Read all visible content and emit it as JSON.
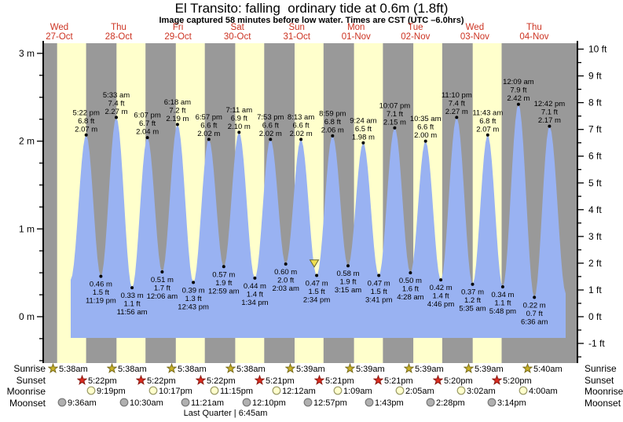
{
  "title": "El Transito: falling  ordinary tide at 0.6m (1.8ft)",
  "subtitle": "Image captured 58 minutes before low water. Times are CST (UTC –6.0hrs)",
  "footer_note": "Last Quarter | 6:45am",
  "colors": {
    "day_label_red": "#cc3322",
    "band_day_yellow": "#ffffcc",
    "band_night_gray": "#999999",
    "tide_fill_blue": "#99b2f2",
    "axis_black": "#000000",
    "marker_fill": "#f0e050",
    "marker_stroke": "#666633",
    "sunrise_star_fill": "#c9b227",
    "sunrise_star_stroke": "#7a6c1a",
    "sunset_star_fill": "#dd2c20",
    "sunset_star_stroke": "#8a1a12",
    "moonrise_circle_fill": "#ffffcc",
    "moonrise_circle_stroke": "#999966",
    "moonset_circle_fill": "#b0b0b0",
    "moonset_circle_stroke": "#777777"
  },
  "days": [
    {
      "weekday": "Wed",
      "date": "27-Oct"
    },
    {
      "weekday": "Thu",
      "date": "28-Oct"
    },
    {
      "weekday": "Fri",
      "date": "29-Oct"
    },
    {
      "weekday": "Sat",
      "date": "30-Oct"
    },
    {
      "weekday": "Sun",
      "date": "31-Oct"
    },
    {
      "weekday": "Mon",
      "date": "01-Nov"
    },
    {
      "weekday": "Tue",
      "date": "02-Nov"
    },
    {
      "weekday": "Wed",
      "date": "03-Nov"
    },
    {
      "weekday": "Thu",
      "date": "04-Nov"
    }
  ],
  "chart_data": {
    "type": "area",
    "title": "El Transito tide heights",
    "x_units": "days (27-Oct to 04-Nov)",
    "y_axis_left": {
      "unit": "m",
      "ticks": [
        {
          "v": 0,
          "label": "0 m"
        },
        {
          "v": 1,
          "label": "1 m"
        },
        {
          "v": 2,
          "label": "2 m"
        },
        {
          "v": 3,
          "label": "3 m"
        }
      ]
    },
    "y_axis_right": {
      "unit": "ft",
      "ticks": [
        {
          "v": -1,
          "label": "-1 ft"
        },
        {
          "v": 0,
          "label": "0 ft"
        },
        {
          "v": 1,
          "label": "1 ft"
        },
        {
          "v": 2,
          "label": "2 ft"
        },
        {
          "v": 3,
          "label": "3 ft"
        },
        {
          "v": 4,
          "label": "4 ft"
        },
        {
          "v": 5,
          "label": "5 ft"
        },
        {
          "v": 6,
          "label": "6 ft"
        },
        {
          "v": 7,
          "label": "7 ft"
        },
        {
          "v": 8,
          "label": "8 ft"
        },
        {
          "v": 9,
          "label": "9 ft"
        },
        {
          "v": 10,
          "label": "10 ft"
        }
      ]
    },
    "highs": [
      {
        "day": 0,
        "time": "5:22 pm",
        "ft": "6.8",
        "m": "2.07"
      },
      {
        "day": 1,
        "time": "5:33 am",
        "ft": "7.4",
        "m": "2.27"
      },
      {
        "day": 1,
        "time": "6:07 pm",
        "ft": "6.7",
        "m": "2.04"
      },
      {
        "day": 2,
        "time": "6:18 am",
        "ft": "7.2",
        "m": "2.19"
      },
      {
        "day": 2,
        "time": "6:57 pm",
        "ft": "6.6",
        "m": "2.02"
      },
      {
        "day": 3,
        "time": "7:11 am",
        "ft": "6.9",
        "m": "2.10"
      },
      {
        "day": 3,
        "time": "7:53 pm",
        "ft": "6.6",
        "m": "2.02"
      },
      {
        "day": 4,
        "time": "8:13 am",
        "ft": "6.6",
        "m": "2.02"
      },
      {
        "day": 4,
        "time": "8:59 pm",
        "ft": "6.8",
        "m": "2.06"
      },
      {
        "day": 5,
        "time": "9:24 am",
        "ft": "6.5",
        "m": "1.98"
      },
      {
        "day": 5,
        "time": "10:07 pm",
        "ft": "7.1",
        "m": "2.15"
      },
      {
        "day": 6,
        "time": "10:35 am",
        "ft": "6.6",
        "m": "2.00"
      },
      {
        "day": 6,
        "time": "11:10 pm",
        "ft": "7.4",
        "m": "2.27"
      },
      {
        "day": 7,
        "time": "11:43 am",
        "ft": "6.8",
        "m": "2.07"
      },
      {
        "day": 8,
        "time": "12:09 am",
        "ft": "7.9",
        "m": "2.42"
      },
      {
        "day": 8,
        "time": "12:42 pm",
        "ft": "7.1",
        "m": "2.17"
      }
    ],
    "lows": [
      {
        "day": 0,
        "time": "11:19 pm",
        "ft": "1.5",
        "m": "0.46"
      },
      {
        "day": 1,
        "time": "11:56 am",
        "ft": "1.1",
        "m": "0.33"
      },
      {
        "day": 2,
        "time": "12:06 am",
        "ft": "1.7",
        "m": "0.51"
      },
      {
        "day": 2,
        "time": "12:43 pm",
        "ft": "1.3",
        "m": "0.39"
      },
      {
        "day": 3,
        "time": "12:59 am",
        "ft": "1.9",
        "m": "0.57"
      },
      {
        "day": 3,
        "time": "1:34 pm",
        "ft": "1.4",
        "m": "0.44"
      },
      {
        "day": 4,
        "time": "2:03 am",
        "ft": "2.0",
        "m": "0.60"
      },
      {
        "day": 4,
        "time": "2:34 pm",
        "ft": "1.5",
        "m": "0.47"
      },
      {
        "day": 5,
        "time": "3:15 am",
        "ft": "1.9",
        "m": "0.58"
      },
      {
        "day": 5,
        "time": "3:41 pm",
        "ft": "1.5",
        "m": "0.47"
      },
      {
        "day": 6,
        "time": "4:28 am",
        "ft": "1.6",
        "m": "0.50"
      },
      {
        "day": 6,
        "time": "4:46 pm",
        "ft": "1.4",
        "m": "0.42"
      },
      {
        "day": 7,
        "time": "5:35 am",
        "ft": "1.2",
        "m": "0.37"
      },
      {
        "day": 7,
        "time": "5:48 pm",
        "ft": "1.1",
        "m": "0.34"
      },
      {
        "day": 8,
        "time": "6:36 am",
        "ft": "0.7",
        "m": "0.22"
      }
    ],
    "current_marker": {
      "minutes_before_low": 58,
      "low_day": 4,
      "low_time": "2:34 pm"
    }
  },
  "sun_moon": {
    "sunrise": {
      "label": "Sunrise",
      "icon": "star-sunrise",
      "events": [
        {
          "day": 0,
          "time": "5:38am"
        },
        {
          "day": 1,
          "time": "5:38am"
        },
        {
          "day": 2,
          "time": "5:38am"
        },
        {
          "day": 3,
          "time": "5:38am"
        },
        {
          "day": 4,
          "time": "5:39am"
        },
        {
          "day": 5,
          "time": "5:39am"
        },
        {
          "day": 6,
          "time": "5:39am"
        },
        {
          "day": 7,
          "time": "5:39am"
        },
        {
          "day": 8,
          "time": "5:40am"
        }
      ]
    },
    "sunset": {
      "label": "Sunset",
      "icon": "star-sunset",
      "events": [
        {
          "day": 0,
          "time": "5:22pm"
        },
        {
          "day": 1,
          "time": "5:22pm"
        },
        {
          "day": 2,
          "time": "5:22pm"
        },
        {
          "day": 3,
          "time": "5:21pm"
        },
        {
          "day": 4,
          "time": "5:21pm"
        },
        {
          "day": 5,
          "time": "5:21pm"
        },
        {
          "day": 6,
          "time": "5:20pm"
        },
        {
          "day": 7,
          "time": "5:20pm"
        }
      ]
    },
    "moonrise": {
      "label": "Moonrise",
      "icon": "circle-moonrise",
      "events": [
        {
          "day": 0,
          "time": "9:19pm"
        },
        {
          "day": 1,
          "time": "10:17pm"
        },
        {
          "day": 2,
          "time": "11:15pm"
        },
        {
          "day": 4,
          "time": "12:12am"
        },
        {
          "day": 5,
          "time": "1:09am"
        },
        {
          "day": 6,
          "time": "2:05am"
        },
        {
          "day": 7,
          "time": "3:02am"
        },
        {
          "day": 8,
          "time": "4:00am"
        }
      ]
    },
    "moonset": {
      "label": "Moonset",
      "icon": "circle-moonset",
      "events": [
        {
          "day": 0,
          "time": "9:36am"
        },
        {
          "day": 1,
          "time": "10:30am"
        },
        {
          "day": 2,
          "time": "11:21am"
        },
        {
          "day": 3,
          "time": "12:10pm"
        },
        {
          "day": 4,
          "time": "12:57pm"
        },
        {
          "day": 5,
          "time": "1:43pm"
        },
        {
          "day": 6,
          "time": "2:28pm"
        },
        {
          "day": 7,
          "time": "3:14pm"
        }
      ]
    }
  }
}
